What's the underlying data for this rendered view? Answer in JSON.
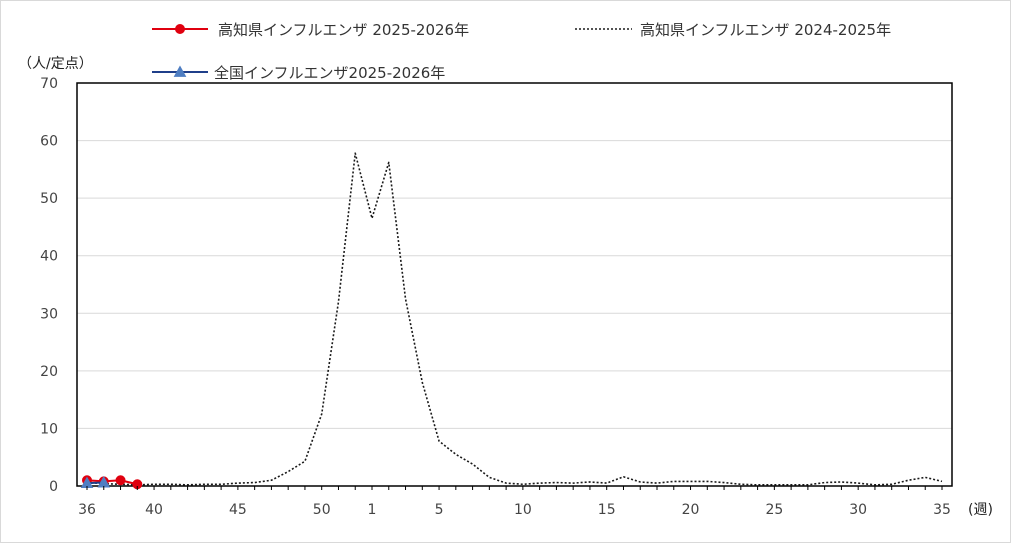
{
  "chart_data": {
    "type": "line",
    "y_unit_label": "（人/定点）",
    "x_unit_label": "(週)",
    "ylim": [
      0,
      70
    ],
    "y_ticks": [
      0,
      10,
      20,
      30,
      40,
      50,
      60,
      70
    ],
    "grid": true,
    "legend_position": "top",
    "x_axis": {
      "count": 52,
      "ticks": [
        {
          "index": 0,
          "label": "36"
        },
        {
          "index": 4,
          "label": "40"
        },
        {
          "index": 9,
          "label": "45"
        },
        {
          "index": 14,
          "label": "50"
        },
        {
          "index": 17,
          "label": "1"
        },
        {
          "index": 21,
          "label": "5"
        },
        {
          "index": 26,
          "label": "10"
        },
        {
          "index": 31,
          "label": "15"
        },
        {
          "index": 36,
          "label": "20"
        },
        {
          "index": 41,
          "label": "25"
        },
        {
          "index": 46,
          "label": "30"
        },
        {
          "index": 51,
          "label": "35"
        }
      ]
    },
    "series": [
      {
        "name": "高知県インフルエンザ 2025-2026年",
        "color": "#e0000f",
        "style": "solid",
        "marker": "circle",
        "values": [
          1.0,
          0.8,
          1.0,
          0.3
        ]
      },
      {
        "name": "高知県インフルエンザ 2024-2025年",
        "color": "#1a1a1a",
        "style": "dotted",
        "marker": "none",
        "values": [
          0.6,
          0.4,
          0.3,
          0.2,
          0.3,
          0.3,
          0.2,
          0.3,
          0.3,
          0.5,
          0.6,
          1.0,
          2.5,
          4.3,
          12.5,
          32.0,
          57.8,
          46.5,
          56.2,
          32.5,
          18.0,
          7.8,
          5.5,
          3.8,
          1.5,
          0.5,
          0.3,
          0.5,
          0.6,
          0.5,
          0.7,
          0.5,
          1.6,
          0.7,
          0.5,
          0.8,
          0.8,
          0.8,
          0.6,
          0.3,
          0.2,
          0.2,
          0.2,
          0.2,
          0.6,
          0.7,
          0.5,
          0.2,
          0.3,
          1.0,
          1.5,
          0.8
        ]
      },
      {
        "name": "全国インフルエンザ2025-2026年",
        "color": "#1f3f8a",
        "marker_color": "#4f7ec2",
        "style": "solid",
        "marker": "triangle",
        "values": [
          0.5,
          0.6
        ]
      }
    ]
  }
}
